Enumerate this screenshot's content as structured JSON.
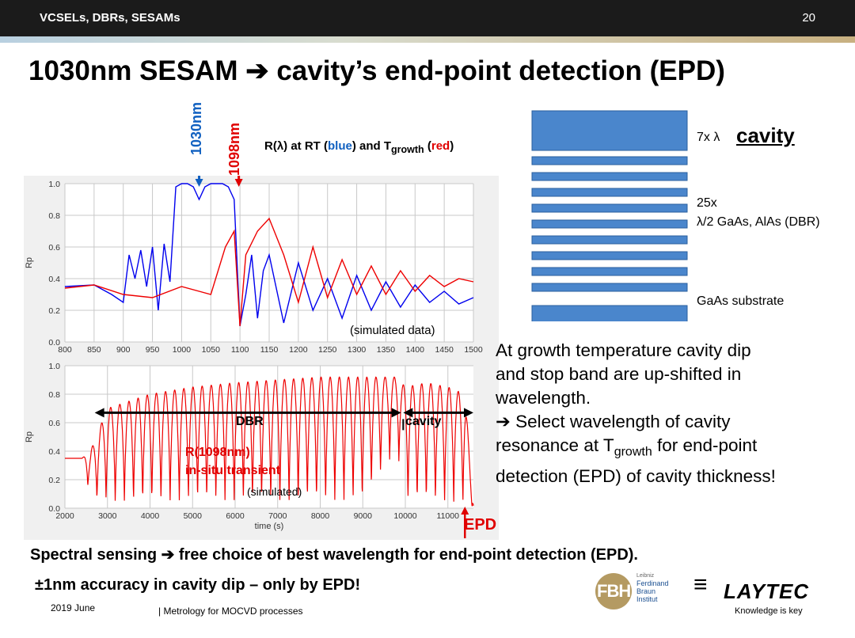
{
  "header": {
    "section": "VCSELs, DBRs, SESAMs",
    "page_number": "20"
  },
  "title": "1030nm SESAM ➔ cavity’s end-point detection (EPD)",
  "marker_blue": "1030nm",
  "marker_red": "1098nm",
  "spectrum_label": {
    "prefix": "R(λ) at RT (",
    "blue_word": "blue",
    "mid": ") and T",
    "sub": "growth",
    "paren": " (",
    "red_word": "red",
    "suffix": ")"
  },
  "structure": {
    "cavity_prefix": "7x λ",
    "cavity_label": "cavity",
    "dbr_line1": "25x",
    "dbr_line2": "λ/2 GaAs, AlAs (DBR)",
    "substrate": "GaAs substrate",
    "colors": {
      "layer": "#4a86cc"
    }
  },
  "body_text": {
    "line1": "At growth temperature cavity dip",
    "line2": "and stop band are up-shifted in",
    "line3": "wavelength.",
    "line4": "➔ Select wavelength of cavity",
    "line5a": "resonance at T",
    "line5sub": "growth",
    "line5b": " for end-point",
    "line6": "detection (EPD) of cavity thickness!"
  },
  "bottom": {
    "line1": "Spectral sensing ➔ free choice of best wavelength for end-point detection (EPD).",
    "line2": "±1nm accuracy in cavity dip – only by EPD!"
  },
  "footer": {
    "date": "2019 June",
    "topic": "Metrology for MOCVD processes"
  },
  "logos": {
    "fbh": "FBH",
    "fbh_small": "Leibniz",
    "fbh_name1": "Ferdinand",
    "fbh_name2": "Braun",
    "fbh_name3": "Institut",
    "laytec": "LAYTEC",
    "laytec_slogan": "Knowledge is key"
  },
  "chart_data": [
    {
      "type": "line",
      "xlabel": "",
      "ylabel": "Rp",
      "xlim": [
        800,
        1500
      ],
      "ylim": [
        0,
        1
      ],
      "xticks": [
        800,
        850,
        900,
        950,
        1000,
        1050,
        1100,
        1150,
        1200,
        1250,
        1300,
        1350,
        1400,
        1450,
        1500
      ],
      "yticks": [
        0.0,
        0.2,
        0.4,
        0.6,
        0.8,
        1.0
      ],
      "annotation": "(simulated data)",
      "series": [
        {
          "color": "#0000ee",
          "x": [
            800,
            850,
            880,
            900,
            910,
            920,
            930,
            940,
            950,
            960,
            970,
            980,
            990,
            1000,
            1010,
            1020,
            1030,
            1040,
            1050,
            1060,
            1070,
            1080,
            1090,
            1100,
            1110,
            1120,
            1130,
            1140,
            1150,
            1175,
            1200,
            1225,
            1250,
            1275,
            1300,
            1325,
            1350,
            1375,
            1400,
            1425,
            1450,
            1475,
            1500
          ],
          "y": [
            0.35,
            0.36,
            0.3,
            0.25,
            0.55,
            0.4,
            0.58,
            0.35,
            0.6,
            0.2,
            0.62,
            0.38,
            0.98,
            1.0,
            1.0,
            0.98,
            0.9,
            0.98,
            1.0,
            1.0,
            1.0,
            0.98,
            0.9,
            0.1,
            0.3,
            0.55,
            0.15,
            0.45,
            0.55,
            0.12,
            0.5,
            0.2,
            0.4,
            0.15,
            0.42,
            0.2,
            0.38,
            0.22,
            0.36,
            0.25,
            0.32,
            0.24,
            0.28
          ]
        },
        {
          "color": "#ee0000",
          "x": [
            800,
            850,
            900,
            950,
            1000,
            1050,
            1075,
            1090,
            1100,
            1110,
            1130,
            1150,
            1175,
            1200,
            1225,
            1250,
            1275,
            1300,
            1325,
            1350,
            1375,
            1400,
            1425,
            1450,
            1475,
            1500
          ],
          "y": [
            0.34,
            0.36,
            0.3,
            0.28,
            0.35,
            0.3,
            0.6,
            0.7,
            0.1,
            0.55,
            0.7,
            0.78,
            0.55,
            0.25,
            0.6,
            0.28,
            0.52,
            0.3,
            0.48,
            0.3,
            0.45,
            0.32,
            0.42,
            0.35,
            0.4,
            0.38
          ]
        }
      ]
    },
    {
      "type": "line",
      "xlabel": "time (s)",
      "ylabel": "Rp",
      "xlim": [
        2000,
        11600
      ],
      "ylim": [
        0,
        1
      ],
      "xticks": [
        2000,
        3000,
        4000,
        5000,
        6000,
        7000,
        8000,
        9000,
        10000,
        11000
      ],
      "yticks": [
        0.0,
        0.2,
        0.4,
        0.6,
        0.8,
        1.0
      ],
      "series_label_line1": "R(1098nm)",
      "series_label_line2": "in-situ transient",
      "annotation": "(simulated)",
      "region_dbr": "DBR",
      "region_cavity": "cavity",
      "epd_label": "EPD",
      "epd_time": 11400,
      "period_s": 215,
      "envelope": {
        "t": [
          2000,
          2400,
          2600,
          3000,
          4000,
          5000,
          6000,
          7000,
          8000,
          9000,
          9800,
          10000,
          10500,
          11000,
          11400,
          11600
        ],
        "min": [
          0.35,
          0.35,
          0.05,
          0.03,
          0.03,
          0.03,
          0.03,
          0.03,
          0.03,
          0.03,
          0.4,
          0.03,
          0.03,
          0.03,
          0.0,
          0.0
        ],
        "max": [
          0.35,
          0.35,
          0.4,
          0.7,
          0.8,
          0.85,
          0.88,
          0.9,
          0.92,
          0.92,
          0.92,
          0.85,
          0.88,
          0.85,
          0.8,
          0.03
        ]
      },
      "series": [
        {
          "color": "#ee0000"
        }
      ]
    }
  ]
}
